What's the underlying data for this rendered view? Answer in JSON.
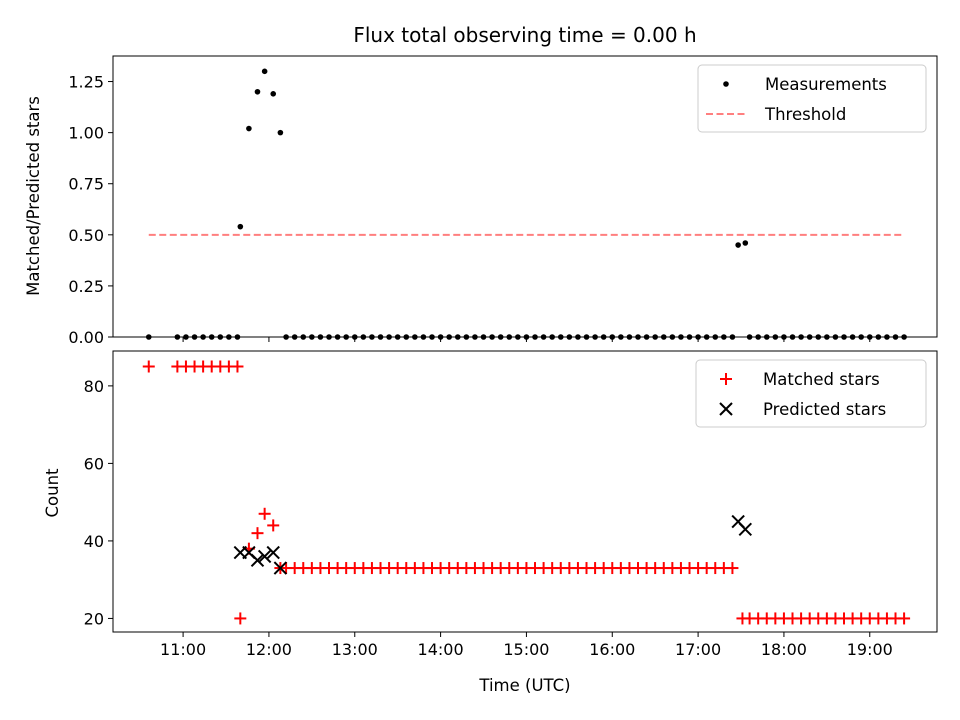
{
  "chart_data": [
    {
      "type": "scatter",
      "title": "Flux total observing time = 0.00 h",
      "ylabel": "Matched/Predicted stars",
      "xlabel": "",
      "ylim": [
        0,
        1.375
      ],
      "xlim": [
        "10:11",
        "19:47"
      ],
      "grid": false,
      "legend_position": "top-right",
      "yticks": [
        {
          "value": 0.0,
          "label": "0.00"
        },
        {
          "value": 0.25,
          "label": "0.25"
        },
        {
          "value": 0.5,
          "label": "0.50"
        },
        {
          "value": 0.75,
          "label": "0.75"
        },
        {
          "value": 1.0,
          "label": "1.00"
        },
        {
          "value": 1.25,
          "label": "1.25"
        }
      ],
      "series": [
        {
          "name": "Measurements",
          "marker": "dot",
          "color": "#000000",
          "points": [
            [
              "10:36",
              0
            ],
            [
              "10:56",
              0
            ],
            [
              "11:02",
              0
            ],
            [
              "11:08",
              0
            ],
            [
              "11:14",
              0
            ],
            [
              "11:20",
              0
            ],
            [
              "11:26",
              0
            ],
            [
              "11:32",
              0
            ],
            [
              "11:38",
              0
            ],
            [
              "11:40",
              0.54
            ],
            [
              "11:46",
              1.02
            ],
            [
              "11:52",
              1.2
            ],
            [
              "11:57",
              1.3
            ],
            [
              "12:03",
              1.19
            ],
            [
              "12:08",
              1.0
            ],
            [
              "12:12",
              0
            ],
            [
              "12:18",
              0
            ],
            [
              "12:24",
              0
            ],
            [
              "12:30",
              0
            ],
            [
              "12:36",
              0
            ],
            [
              "12:42",
              0
            ],
            [
              "12:48",
              0
            ],
            [
              "12:54",
              0
            ],
            [
              "13:00",
              0
            ],
            [
              "13:06",
              0
            ],
            [
              "13:12",
              0
            ],
            [
              "13:18",
              0
            ],
            [
              "13:24",
              0
            ],
            [
              "13:30",
              0
            ],
            [
              "13:36",
              0
            ],
            [
              "13:42",
              0
            ],
            [
              "13:48",
              0
            ],
            [
              "13:54",
              0
            ],
            [
              "14:00",
              0
            ],
            [
              "14:06",
              0
            ],
            [
              "14:12",
              0
            ],
            [
              "14:18",
              0
            ],
            [
              "14:24",
              0
            ],
            [
              "14:30",
              0
            ],
            [
              "14:36",
              0
            ],
            [
              "14:42",
              0
            ],
            [
              "14:48",
              0
            ],
            [
              "14:54",
              0
            ],
            [
              "15:00",
              0
            ],
            [
              "15:06",
              0
            ],
            [
              "15:12",
              0
            ],
            [
              "15:18",
              0
            ],
            [
              "15:24",
              0
            ],
            [
              "15:30",
              0
            ],
            [
              "15:36",
              0
            ],
            [
              "15:42",
              0
            ],
            [
              "15:48",
              0
            ],
            [
              "15:54",
              0
            ],
            [
              "16:00",
              0
            ],
            [
              "16:06",
              0
            ],
            [
              "16:12",
              0
            ],
            [
              "16:18",
              0
            ],
            [
              "16:24",
              0
            ],
            [
              "16:30",
              0
            ],
            [
              "16:36",
              0
            ],
            [
              "16:42",
              0
            ],
            [
              "16:48",
              0
            ],
            [
              "16:54",
              0
            ],
            [
              "17:00",
              0
            ],
            [
              "17:06",
              0
            ],
            [
              "17:12",
              0
            ],
            [
              "17:18",
              0
            ],
            [
              "17:24",
              0
            ],
            [
              "17:28",
              0.45
            ],
            [
              "17:33",
              0.46
            ],
            [
              "17:36",
              0
            ],
            [
              "17:42",
              0
            ],
            [
              "17:48",
              0
            ],
            [
              "17:54",
              0
            ],
            [
              "18:00",
              0
            ],
            [
              "18:06",
              0
            ],
            [
              "18:12",
              0
            ],
            [
              "18:18",
              0
            ],
            [
              "18:24",
              0
            ],
            [
              "18:30",
              0
            ],
            [
              "18:36",
              0
            ],
            [
              "18:42",
              0
            ],
            [
              "18:48",
              0
            ],
            [
              "18:54",
              0
            ],
            [
              "19:00",
              0
            ],
            [
              "19:06",
              0
            ],
            [
              "19:12",
              0
            ],
            [
              "19:18",
              0
            ],
            [
              "19:24",
              0
            ]
          ]
        },
        {
          "name": "Threshold",
          "marker": "dashed-line",
          "color": "#ff7f7f",
          "points": [
            [
              "10:36",
              0.5
            ],
            [
              "19:24",
              0.5
            ]
          ]
        }
      ]
    },
    {
      "type": "scatter",
      "title": "",
      "ylabel": "Count",
      "xlabel": "Time (UTC)",
      "ylim": [
        16.5,
        89
      ],
      "xlim": [
        "10:11",
        "19:47"
      ],
      "grid": false,
      "legend_position": "top-right",
      "yticks": [
        {
          "value": 20,
          "label": "20"
        },
        {
          "value": 40,
          "label": "40"
        },
        {
          "value": 60,
          "label": "60"
        },
        {
          "value": 80,
          "label": "80"
        }
      ],
      "xticks": [
        {
          "value": "11:00",
          "label": "11:00"
        },
        {
          "value": "12:00",
          "label": "12:00"
        },
        {
          "value": "13:00",
          "label": "13:00"
        },
        {
          "value": "14:00",
          "label": "14:00"
        },
        {
          "value": "15:00",
          "label": "15:00"
        },
        {
          "value": "16:00",
          "label": "16:00"
        },
        {
          "value": "17:00",
          "label": "17:00"
        },
        {
          "value": "18:00",
          "label": "18:00"
        },
        {
          "value": "19:00",
          "label": "19:00"
        }
      ],
      "series": [
        {
          "name": "Matched stars",
          "marker": "plus",
          "color": "#ff0000",
          "points": [
            [
              "10:36",
              85
            ],
            [
              "10:56",
              85
            ],
            [
              "11:02",
              85
            ],
            [
              "11:08",
              85
            ],
            [
              "11:14",
              85
            ],
            [
              "11:20",
              85
            ],
            [
              "11:26",
              85
            ],
            [
              "11:32",
              85
            ],
            [
              "11:38",
              85
            ],
            [
              "11:40",
              20
            ],
            [
              "11:46",
              38
            ],
            [
              "11:52",
              42
            ],
            [
              "11:57",
              47
            ],
            [
              "12:03",
              44
            ],
            [
              "12:08",
              33
            ],
            [
              "12:12",
              33
            ],
            [
              "12:18",
              33
            ],
            [
              "12:24",
              33
            ],
            [
              "12:30",
              33
            ],
            [
              "12:36",
              33
            ],
            [
              "12:42",
              33
            ],
            [
              "12:48",
              33
            ],
            [
              "12:54",
              33
            ],
            [
              "13:00",
              33
            ],
            [
              "13:06",
              33
            ],
            [
              "13:12",
              33
            ],
            [
              "13:18",
              33
            ],
            [
              "13:24",
              33
            ],
            [
              "13:30",
              33
            ],
            [
              "13:36",
              33
            ],
            [
              "13:42",
              33
            ],
            [
              "13:48",
              33
            ],
            [
              "13:54",
              33
            ],
            [
              "14:00",
              33
            ],
            [
              "14:06",
              33
            ],
            [
              "14:12",
              33
            ],
            [
              "14:18",
              33
            ],
            [
              "14:24",
              33
            ],
            [
              "14:30",
              33
            ],
            [
              "14:36",
              33
            ],
            [
              "14:42",
              33
            ],
            [
              "14:48",
              33
            ],
            [
              "14:54",
              33
            ],
            [
              "15:00",
              33
            ],
            [
              "15:06",
              33
            ],
            [
              "15:12",
              33
            ],
            [
              "15:18",
              33
            ],
            [
              "15:24",
              33
            ],
            [
              "15:30",
              33
            ],
            [
              "15:36",
              33
            ],
            [
              "15:42",
              33
            ],
            [
              "15:48",
              33
            ],
            [
              "15:54",
              33
            ],
            [
              "16:00",
              33
            ],
            [
              "16:06",
              33
            ],
            [
              "16:12",
              33
            ],
            [
              "16:18",
              33
            ],
            [
              "16:24",
              33
            ],
            [
              "16:30",
              33
            ],
            [
              "16:36",
              33
            ],
            [
              "16:42",
              33
            ],
            [
              "16:48",
              33
            ],
            [
              "16:54",
              33
            ],
            [
              "17:00",
              33
            ],
            [
              "17:06",
              33
            ],
            [
              "17:12",
              33
            ],
            [
              "17:18",
              33
            ],
            [
              "17:24",
              33
            ],
            [
              "17:31",
              20
            ],
            [
              "17:36",
              20
            ],
            [
              "17:42",
              20
            ],
            [
              "17:48",
              20
            ],
            [
              "17:54",
              20
            ],
            [
              "18:00",
              20
            ],
            [
              "18:06",
              20
            ],
            [
              "18:12",
              20
            ],
            [
              "18:18",
              20
            ],
            [
              "18:24",
              20
            ],
            [
              "18:30",
              20
            ],
            [
              "18:36",
              20
            ],
            [
              "18:42",
              20
            ],
            [
              "18:48",
              20
            ],
            [
              "18:54",
              20
            ],
            [
              "19:00",
              20
            ],
            [
              "19:06",
              20
            ],
            [
              "19:12",
              20
            ],
            [
              "19:18",
              20
            ],
            [
              "19:24",
              20
            ]
          ]
        },
        {
          "name": "Predicted stars",
          "marker": "x",
          "color": "#000000",
          "points": [
            [
              "11:40",
              37
            ],
            [
              "11:46",
              37
            ],
            [
              "11:52",
              35
            ],
            [
              "11:57",
              36
            ],
            [
              "12:03",
              37
            ],
            [
              "12:08",
              33
            ],
            [
              "17:28",
              45
            ],
            [
              "17:33",
              43
            ]
          ]
        }
      ]
    }
  ]
}
